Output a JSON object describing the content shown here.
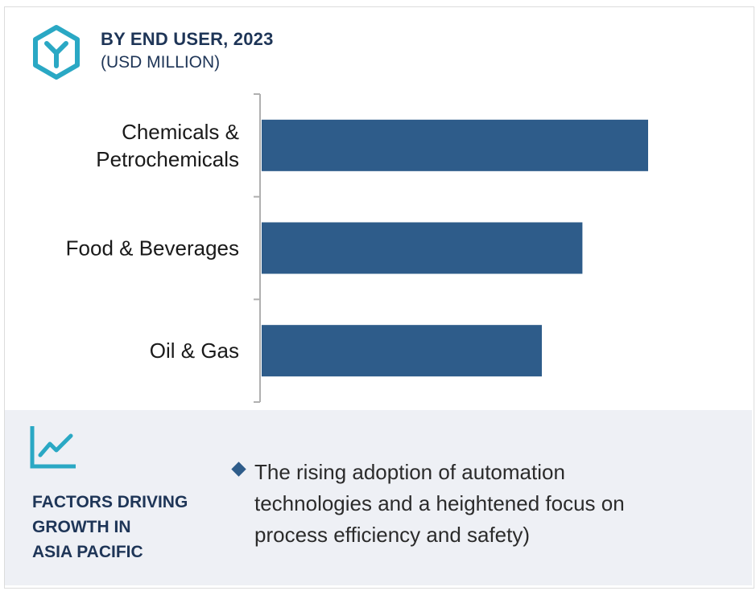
{
  "header": {
    "title": "BY END USER, 2023",
    "subtitle": "(USD MILLION)",
    "logo_icon": "y-hexagon-icon"
  },
  "chart_data": {
    "type": "bar",
    "orientation": "horizontal",
    "title": "BY END USER, 2023",
    "subtitle": "(USD MILLION)",
    "categories": [
      "Chemicals & Petrochemicals",
      "Food & Beverages",
      "Oil & Gas"
    ],
    "category_lines": [
      [
        "Chemicals &",
        "Petrochemicals"
      ],
      [
        "Food & Beverages"
      ],
      [
        "Oil & Gas"
      ]
    ],
    "values": [
      100,
      83,
      72.5
    ],
    "value_note": "relative lengths only; no value axis printed",
    "xlim": [
      0,
      100
    ],
    "grid": false,
    "legend": "none",
    "bar_color": "#2e5c8a",
    "axis_color": "#b0b0b0"
  },
  "factors": {
    "icon": "line-chart-icon",
    "title_lines": [
      "FACTORS DRIVING",
      "GROWTH IN",
      "ASIA PACIFIC"
    ],
    "bullet_lines": [
      "The rising adoption of automation",
      "technologies and a heightened focus on",
      "process efficiency and safety)"
    ],
    "accent_color": "#2aa8c4",
    "panel_color": "#eef0f5"
  }
}
